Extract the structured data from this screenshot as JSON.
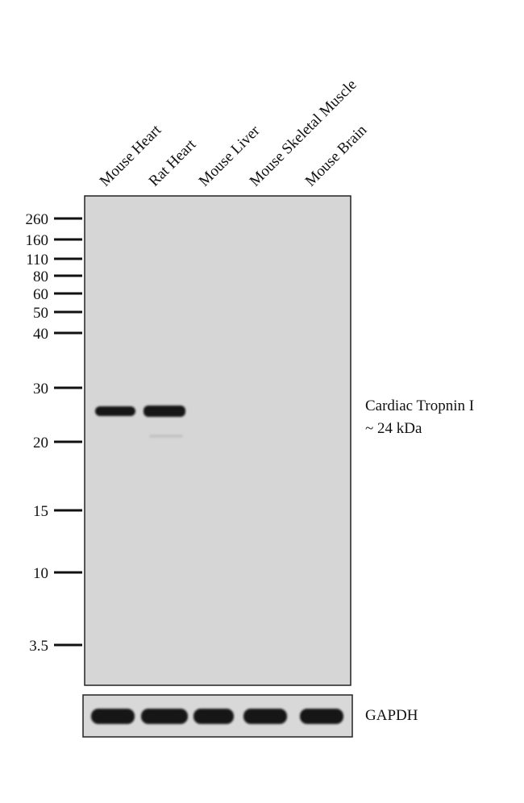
{
  "lanes": [
    "Mouse Heart",
    "Rat Heart",
    "Mouse Liver",
    "Mouse Skeletal Muscle",
    "Mouse Brain"
  ],
  "markers": [
    "260",
    "160",
    "110",
    "80",
    "60",
    "50",
    "40",
    "30",
    "20",
    "15",
    "10",
    "3.5"
  ],
  "target": {
    "name": "Cardiac Tropnin I",
    "size": "~ 24 kDa"
  },
  "loading_control": "GAPDH"
}
